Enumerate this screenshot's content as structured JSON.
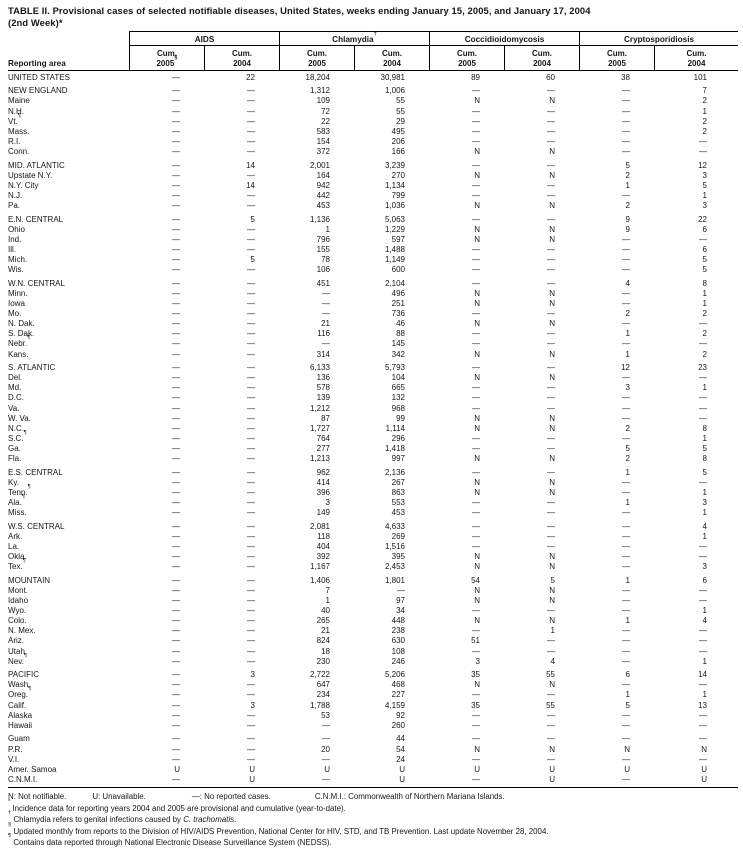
{
  "title": {
    "line1": "TABLE II. Provisional cases of selected notifiable diseases, United States, weeks ending January 15, 2005, and January 17, 2004",
    "line2": "(2nd Week)*"
  },
  "table": {
    "reporting_area_label": "Reporting area",
    "groups": [
      {
        "label": "AIDS",
        "sup": ""
      },
      {
        "label": "Chlamydia",
        "sup": "†"
      },
      {
        "label": "Coccidioidomycosis",
        "sup": ""
      },
      {
        "label": "Cryptosporidiosis",
        "sup": ""
      }
    ],
    "subcolumns": [
      {
        "line1": "Cum.",
        "line2": "2005",
        "sup": "§"
      },
      {
        "line1": "Cum.",
        "line2": "2004",
        "sup": ""
      },
      {
        "line1": "Cum.",
        "line2": "2005",
        "sup": ""
      },
      {
        "line1": "Cum.",
        "line2": "2004",
        "sup": ""
      },
      {
        "line1": "Cum.",
        "line2": "2005",
        "sup": ""
      },
      {
        "line1": "Cum.",
        "line2": "2004",
        "sup": ""
      },
      {
        "line1": "Cum.",
        "line2": "2005",
        "sup": ""
      },
      {
        "line1": "Cum.",
        "line2": "2004",
        "sup": ""
      }
    ],
    "rows": [
      {
        "area": "UNITED STATES",
        "sup": "",
        "gap": false,
        "v": [
          "—",
          "22",
          "18,204",
          "30,981",
          "89",
          "60",
          "38",
          "101"
        ]
      },
      {
        "area": "NEW ENGLAND",
        "sup": "",
        "gap": true,
        "v": [
          "—",
          "—",
          "1,312",
          "1,006",
          "—",
          "—",
          "—",
          "7"
        ]
      },
      {
        "area": "Maine",
        "sup": "",
        "gap": false,
        "v": [
          "—",
          "—",
          "109",
          "55",
          "N",
          "N",
          "—",
          "2"
        ]
      },
      {
        "area": "N.H.",
        "sup": "",
        "gap": false,
        "v": [
          "—",
          "—",
          "72",
          "55",
          "—",
          "—",
          "—",
          "1"
        ]
      },
      {
        "area": "Vt.",
        "sup": "¶",
        "gap": false,
        "v": [
          "—",
          "—",
          "22",
          "29",
          "—",
          "—",
          "—",
          "2"
        ]
      },
      {
        "area": "Mass.",
        "sup": "",
        "gap": false,
        "v": [
          "—",
          "—",
          "583",
          "495",
          "—",
          "—",
          "—",
          "2"
        ]
      },
      {
        "area": "R.I.",
        "sup": "",
        "gap": false,
        "v": [
          "—",
          "—",
          "154",
          "206",
          "—",
          "—",
          "—",
          "—"
        ]
      },
      {
        "area": "Conn.",
        "sup": "",
        "gap": false,
        "v": [
          "—",
          "—",
          "372",
          "166",
          "N",
          "N",
          "—",
          "—"
        ]
      },
      {
        "area": "MID. ATLANTIC",
        "sup": "",
        "gap": true,
        "v": [
          "—",
          "14",
          "2,001",
          "3,239",
          "—",
          "—",
          "5",
          "12"
        ]
      },
      {
        "area": "Upstate N.Y.",
        "sup": "",
        "gap": false,
        "v": [
          "—",
          "—",
          "164",
          "270",
          "N",
          "N",
          "2",
          "3"
        ]
      },
      {
        "area": "N.Y. City",
        "sup": "",
        "gap": false,
        "v": [
          "—",
          "14",
          "942",
          "1,134",
          "—",
          "—",
          "1",
          "5"
        ]
      },
      {
        "area": "N.J.",
        "sup": "",
        "gap": false,
        "v": [
          "—",
          "—",
          "442",
          "799",
          "—",
          "—",
          "—",
          "1"
        ]
      },
      {
        "area": "Pa.",
        "sup": "",
        "gap": false,
        "v": [
          "—",
          "—",
          "453",
          "1,036",
          "N",
          "N",
          "2",
          "3"
        ]
      },
      {
        "area": "E.N. CENTRAL",
        "sup": "",
        "gap": true,
        "v": [
          "—",
          "5",
          "1,136",
          "5,063",
          "—",
          "—",
          "9",
          "22"
        ]
      },
      {
        "area": "Ohio",
        "sup": "",
        "gap": false,
        "v": [
          "—",
          "—",
          "1",
          "1,229",
          "N",
          "N",
          "9",
          "6"
        ]
      },
      {
        "area": "Ind.",
        "sup": "",
        "gap": false,
        "v": [
          "—",
          "—",
          "796",
          "597",
          "N",
          "N",
          "—",
          "—"
        ]
      },
      {
        "area": "Ill.",
        "sup": "",
        "gap": false,
        "v": [
          "—",
          "—",
          "155",
          "1,488",
          "—",
          "—",
          "—",
          "6"
        ]
      },
      {
        "area": "Mich.",
        "sup": "",
        "gap": false,
        "v": [
          "—",
          "5",
          "78",
          "1,149",
          "—",
          "—",
          "—",
          "5"
        ]
      },
      {
        "area": "Wis.",
        "sup": "",
        "gap": false,
        "v": [
          "—",
          "—",
          "106",
          "600",
          "—",
          "—",
          "—",
          "5"
        ]
      },
      {
        "area": "W.N. CENTRAL",
        "sup": "",
        "gap": true,
        "v": [
          "—",
          "—",
          "451",
          "2,104",
          "—",
          "—",
          "4",
          "8"
        ]
      },
      {
        "area": "Minn.",
        "sup": "",
        "gap": false,
        "v": [
          "—",
          "—",
          "—",
          "496",
          "N",
          "N",
          "—",
          "1"
        ]
      },
      {
        "area": "Iowa",
        "sup": "",
        "gap": false,
        "v": [
          "—",
          "—",
          "—",
          "251",
          "N",
          "N",
          "—",
          "1"
        ]
      },
      {
        "area": "Mo.",
        "sup": "",
        "gap": false,
        "v": [
          "—",
          "—",
          "—",
          "736",
          "—",
          "—",
          "2",
          "2"
        ]
      },
      {
        "area": "N. Dak.",
        "sup": "",
        "gap": false,
        "v": [
          "—",
          "—",
          "21",
          "46",
          "N",
          "N",
          "—",
          "—"
        ]
      },
      {
        "area": "S. Dak.",
        "sup": "",
        "gap": false,
        "v": [
          "—",
          "—",
          "116",
          "88",
          "—",
          "—",
          "1",
          "2"
        ]
      },
      {
        "area": "Nebr.",
        "sup": "¶",
        "gap": false,
        "v": [
          "—",
          "—",
          "—",
          "145",
          "—",
          "—",
          "—",
          "—"
        ]
      },
      {
        "area": "Kans.",
        "sup": "",
        "gap": false,
        "v": [
          "—",
          "—",
          "314",
          "342",
          "N",
          "N",
          "1",
          "2"
        ]
      },
      {
        "area": "S. ATLANTIC",
        "sup": "",
        "gap": true,
        "v": [
          "—",
          "—",
          "6,133",
          "5,793",
          "—",
          "—",
          "12",
          "23"
        ]
      },
      {
        "area": "Del.",
        "sup": "",
        "gap": false,
        "v": [
          "—",
          "—",
          "136",
          "104",
          "N",
          "N",
          "—",
          "—"
        ]
      },
      {
        "area": "Md.",
        "sup": "",
        "gap": false,
        "v": [
          "—",
          "—",
          "578",
          "665",
          "—",
          "—",
          "3",
          "1"
        ]
      },
      {
        "area": "D.C.",
        "sup": "",
        "gap": false,
        "v": [
          "—",
          "—",
          "139",
          "132",
          "—",
          "—",
          "—",
          "—"
        ]
      },
      {
        "area": "Va.",
        "sup": "",
        "gap": false,
        "v": [
          "—",
          "—",
          "1,212",
          "968",
          "—",
          "—",
          "—",
          "—"
        ]
      },
      {
        "area": "W. Va.",
        "sup": "",
        "gap": false,
        "v": [
          "—",
          "—",
          "87",
          "99",
          "N",
          "N",
          "—",
          "—"
        ]
      },
      {
        "area": "N.C.",
        "sup": "",
        "gap": false,
        "v": [
          "—",
          "—",
          "1,727",
          "1,114",
          "N",
          "N",
          "2",
          "8"
        ]
      },
      {
        "area": "S.C.",
        "sup": "¶",
        "gap": false,
        "v": [
          "—",
          "—",
          "764",
          "296",
          "—",
          "—",
          "—",
          "1"
        ]
      },
      {
        "area": "Ga.",
        "sup": "",
        "gap": false,
        "v": [
          "—",
          "—",
          "277",
          "1,418",
          "—",
          "—",
          "5",
          "5"
        ]
      },
      {
        "area": "Fla.",
        "sup": "",
        "gap": false,
        "v": [
          "—",
          "—",
          "1,213",
          "997",
          "N",
          "N",
          "2",
          "8"
        ]
      },
      {
        "area": "E.S. CENTRAL",
        "sup": "",
        "gap": true,
        "v": [
          "—",
          "—",
          "962",
          "2,136",
          "—",
          "—",
          "1",
          "5"
        ]
      },
      {
        "area": "Ky.",
        "sup": "",
        "gap": false,
        "v": [
          "—",
          "—",
          "414",
          "267",
          "N",
          "N",
          "—",
          "—"
        ]
      },
      {
        "area": "Tenn.",
        "sup": "¶",
        "gap": false,
        "v": [
          "—",
          "—",
          "396",
          "863",
          "N",
          "N",
          "—",
          "1"
        ]
      },
      {
        "area": "Ala.",
        "sup": "¶",
        "gap": false,
        "v": [
          "—",
          "—",
          "3",
          "553",
          "—",
          "—",
          "1",
          "3"
        ]
      },
      {
        "area": "Miss.",
        "sup": "",
        "gap": false,
        "v": [
          "—",
          "—",
          "149",
          "453",
          "—",
          "—",
          "—",
          "1"
        ]
      },
      {
        "area": "W.S. CENTRAL",
        "sup": "",
        "gap": true,
        "v": [
          "—",
          "—",
          "2,081",
          "4,633",
          "—",
          "—",
          "—",
          "4"
        ]
      },
      {
        "area": "Ark.",
        "sup": "",
        "gap": false,
        "v": [
          "—",
          "—",
          "118",
          "269",
          "—",
          "—",
          "—",
          "1"
        ]
      },
      {
        "area": "La.",
        "sup": "",
        "gap": false,
        "v": [
          "—",
          "—",
          "404",
          "1,516",
          "—",
          "—",
          "—",
          "—"
        ]
      },
      {
        "area": "Okla.",
        "sup": "",
        "gap": false,
        "v": [
          "—",
          "—",
          "392",
          "395",
          "N",
          "N",
          "—",
          "—"
        ]
      },
      {
        "area": "Tex.",
        "sup": "¶",
        "gap": false,
        "v": [
          "—",
          "—",
          "1,167",
          "2,453",
          "N",
          "N",
          "—",
          "3"
        ]
      },
      {
        "area": "MOUNTAIN",
        "sup": "",
        "gap": true,
        "v": [
          "—",
          "—",
          "1,406",
          "1,801",
          "54",
          "5",
          "1",
          "6"
        ]
      },
      {
        "area": "Mont.",
        "sup": "",
        "gap": false,
        "v": [
          "—",
          "—",
          "7",
          "—",
          "N",
          "N",
          "—",
          "—"
        ]
      },
      {
        "area": "Idaho",
        "sup": "",
        "gap": false,
        "v": [
          "—",
          "—",
          "1",
          "97",
          "N",
          "N",
          "—",
          "—"
        ]
      },
      {
        "area": "Wyo.",
        "sup": "",
        "gap": false,
        "v": [
          "—",
          "—",
          "40",
          "34",
          "—",
          "—",
          "—",
          "1"
        ]
      },
      {
        "area": "Colo.",
        "sup": "",
        "gap": false,
        "v": [
          "—",
          "—",
          "265",
          "448",
          "N",
          "N",
          "1",
          "4"
        ]
      },
      {
        "area": "N. Mex.",
        "sup": "",
        "gap": false,
        "v": [
          "—",
          "—",
          "21",
          "238",
          "—",
          "1",
          "—",
          "—"
        ]
      },
      {
        "area": "Ariz.",
        "sup": "",
        "gap": false,
        "v": [
          "—",
          "—",
          "824",
          "630",
          "51",
          "—",
          "—",
          "—"
        ]
      },
      {
        "area": "Utah",
        "sup": "",
        "gap": false,
        "v": [
          "—",
          "—",
          "18",
          "108",
          "—",
          "—",
          "—",
          "—"
        ]
      },
      {
        "area": "Nev.",
        "sup": "¶",
        "gap": false,
        "v": [
          "—",
          "—",
          "230",
          "246",
          "3",
          "4",
          "—",
          "1"
        ]
      },
      {
        "area": "PACIFIC",
        "sup": "",
        "gap": true,
        "v": [
          "—",
          "3",
          "2,722",
          "5,206",
          "35",
          "55",
          "6",
          "14"
        ]
      },
      {
        "area": "Wash.",
        "sup": "",
        "gap": false,
        "v": [
          "—",
          "—",
          "647",
          "468",
          "N",
          "N",
          "—",
          "—"
        ]
      },
      {
        "area": "Oreg.",
        "sup": "¶",
        "gap": false,
        "v": [
          "—",
          "—",
          "234",
          "227",
          "—",
          "—",
          "1",
          "1"
        ]
      },
      {
        "area": "Calif.",
        "sup": "",
        "gap": false,
        "v": [
          "—",
          "3",
          "1,788",
          "4,159",
          "35",
          "55",
          "5",
          "13"
        ]
      },
      {
        "area": "Alaska",
        "sup": "",
        "gap": false,
        "v": [
          "—",
          "—",
          "53",
          "92",
          "—",
          "—",
          "—",
          "—"
        ]
      },
      {
        "area": "Hawaii",
        "sup": "",
        "gap": false,
        "v": [
          "—",
          "—",
          "—",
          "260",
          "—",
          "—",
          "—",
          "—"
        ]
      },
      {
        "area": "Guam",
        "sup": "",
        "gap": true,
        "v": [
          "—",
          "—",
          "—",
          "44",
          "—",
          "—",
          "—",
          "—"
        ]
      },
      {
        "area": "P.R.",
        "sup": "",
        "gap": false,
        "v": [
          "—",
          "—",
          "20",
          "54",
          "N",
          "N",
          "N",
          "N"
        ]
      },
      {
        "area": "V.I.",
        "sup": "",
        "gap": false,
        "v": [
          "—",
          "—",
          "—",
          "24",
          "—",
          "—",
          "—",
          "—"
        ]
      },
      {
        "area": "Amer. Samoa",
        "sup": "",
        "gap": false,
        "v": [
          "U",
          "U",
          "U",
          "U",
          "U",
          "U",
          "U",
          "U"
        ]
      },
      {
        "area": "C.N.M.I.",
        "sup": "",
        "gap": false,
        "v": [
          "—",
          "U",
          "—",
          "U",
          "—",
          "U",
          "—",
          "U"
        ]
      }
    ]
  },
  "footnotes": {
    "legend": [
      "N: Not notifiable.",
      "U: Unavailable.",
      "—: No reported cases.",
      "C.N.M.I.: Commonwealth of Northern Mariana Islands."
    ],
    "notes": [
      {
        "marker": "*",
        "parts": [
          {
            "t": "Incidence data for reporting years 2004 and 2005 are provisional and cumulative (year-to-date)."
          }
        ]
      },
      {
        "marker": "†",
        "parts": [
          {
            "t": "Chlamydia refers to genital infections caused by "
          },
          {
            "t": "C. trachomatis",
            "i": true
          },
          {
            "t": "."
          }
        ]
      },
      {
        "marker": "§",
        "parts": [
          {
            "t": "Updated monthly from reports to the Division of HIV/AIDS Prevention, National Center for HIV, STD, and TB Prevention. Last update November 28, 2004."
          }
        ]
      },
      {
        "marker": "¶",
        "parts": [
          {
            "t": "Contains data reported through National Electronic Disease Surveillance System (NEDSS)."
          }
        ]
      }
    ]
  }
}
